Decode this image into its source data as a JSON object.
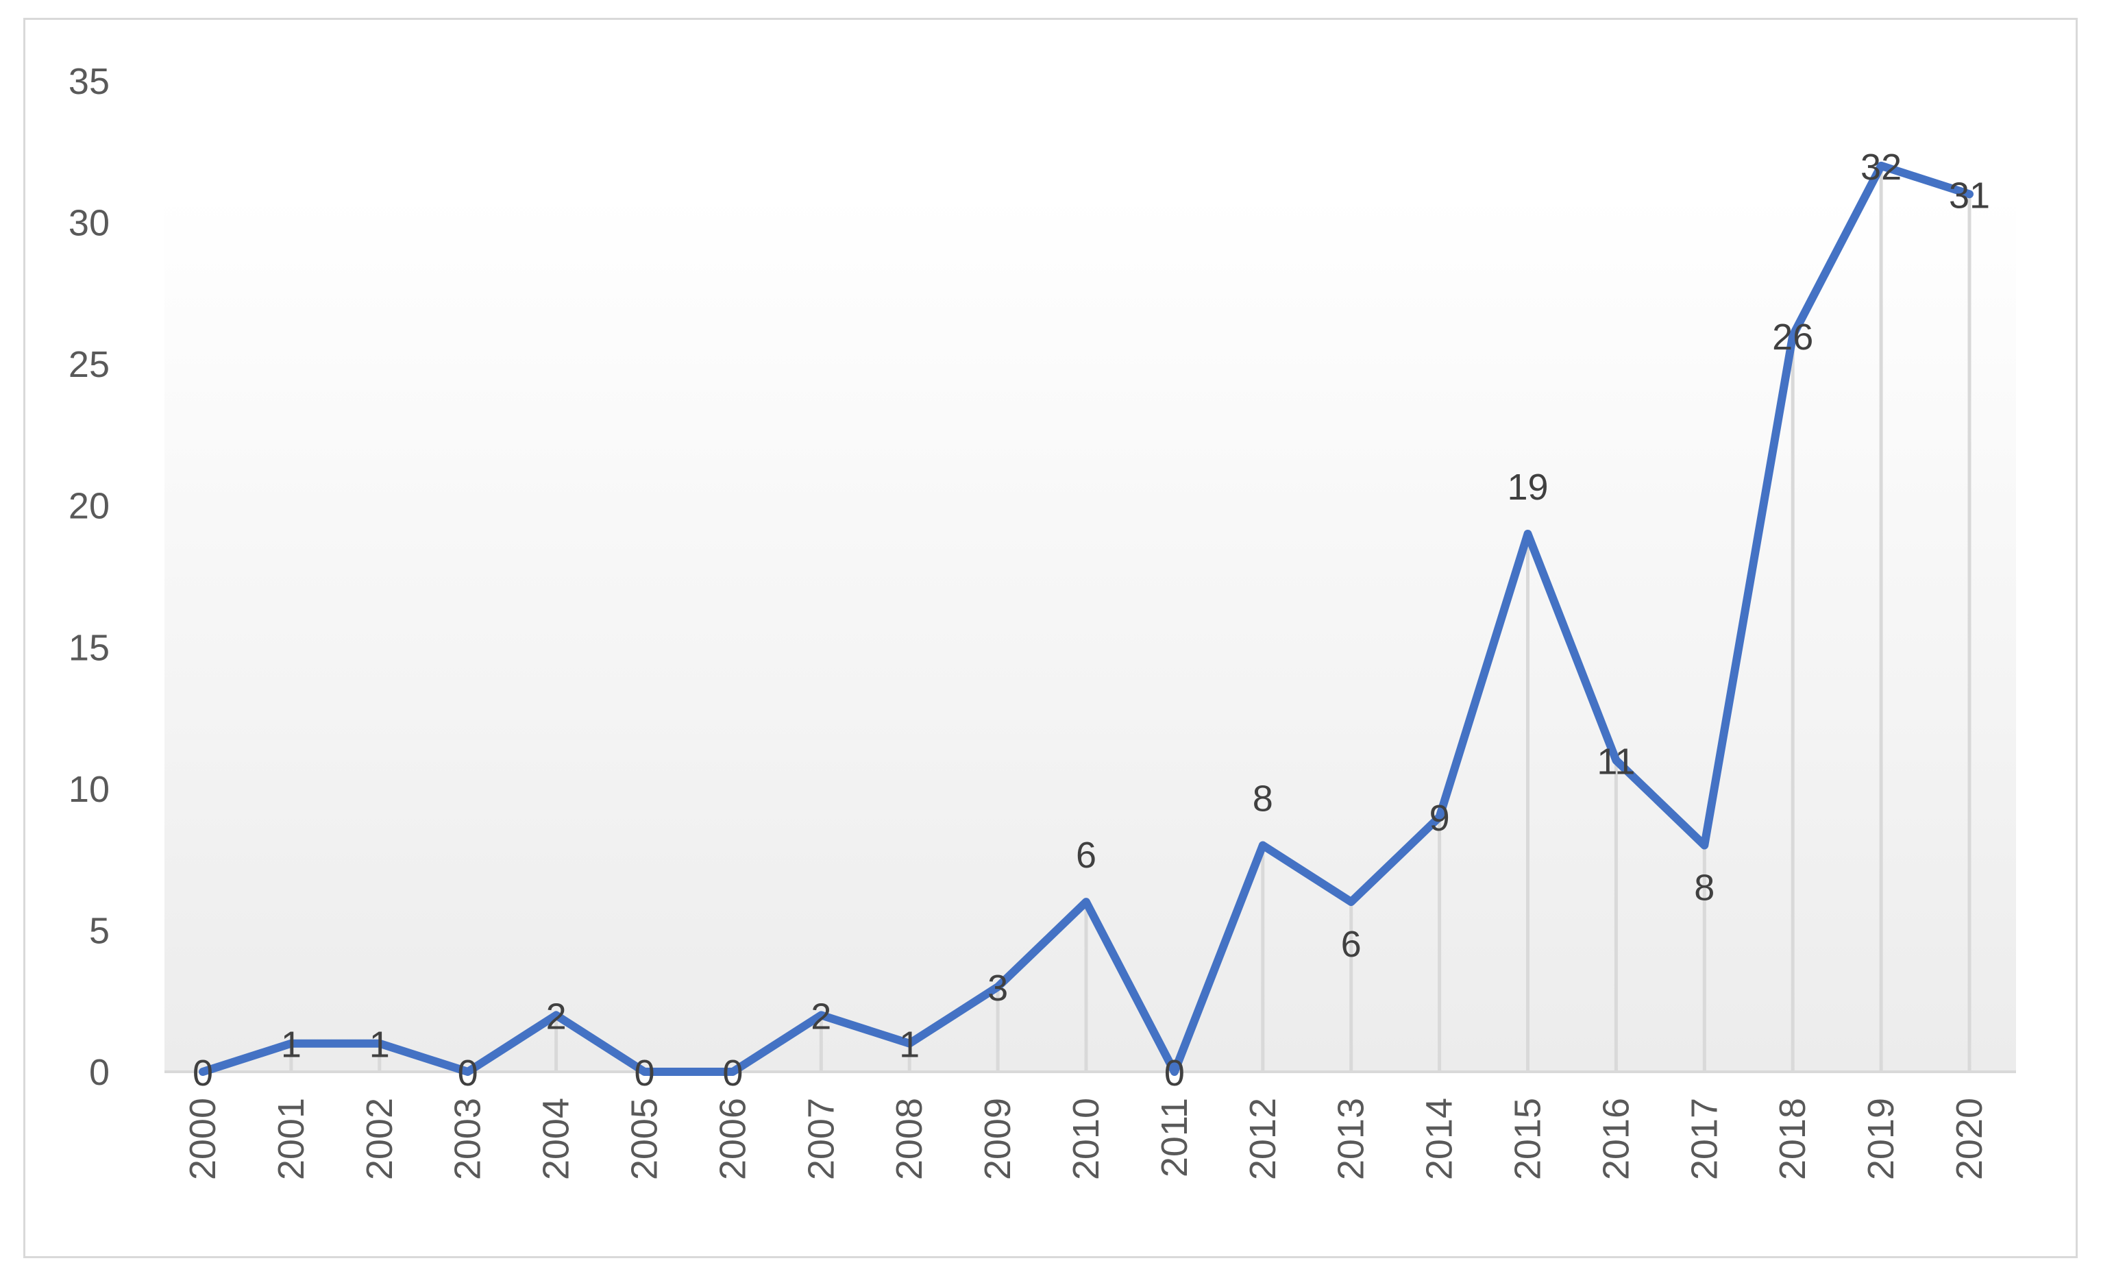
{
  "chart_data": {
    "type": "line",
    "title": "",
    "xlabel": "",
    "ylabel": "",
    "categories": [
      "2000",
      "2001",
      "2002",
      "2003",
      "2004",
      "2005",
      "2006",
      "2007",
      "2008",
      "2009",
      "2010",
      "2011",
      "2012",
      "2013",
      "2014",
      "2015",
      "2016",
      "2017",
      "2018",
      "2019",
      "2020"
    ],
    "series": [
      {
        "values": [
          0,
          1,
          1,
          0,
          2,
          0,
          0,
          2,
          1,
          3,
          6,
          0,
          8,
          6,
          9,
          19,
          11,
          8,
          26,
          32,
          31
        ]
      }
    ],
    "ylim": [
      0,
      35
    ],
    "yticks": [
      "0",
      "5",
      "10",
      "15",
      "20",
      "25",
      "30",
      "35"
    ],
    "grid": "drop lines at each category",
    "data_labels": true,
    "legend": "none",
    "colors": {
      "line": "#4472c4",
      "drop_line": "#d9d9d9",
      "axis": "#d9d9d9",
      "text": "#595959"
    }
  }
}
